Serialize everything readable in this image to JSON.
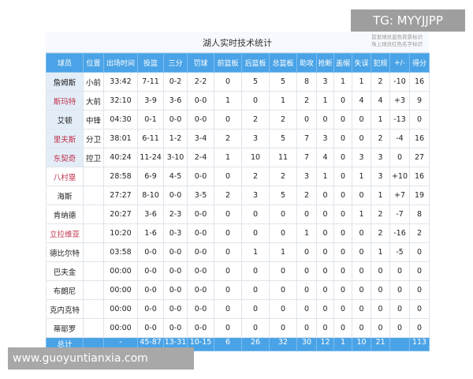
{
  "title": "湖人实时技术统计",
  "note": [
    "首发球员蓝色背景标识",
    "场上球员红色名字标识"
  ],
  "watermark_top": "TG: MYYJJPP",
  "watermark_bottom": "www.guoyuntianxia.com",
  "headers": [
    "球员",
    "位置",
    "出场时间",
    "投篮",
    "三分",
    "罚球",
    "前篮板",
    "后篮板",
    "总篮板",
    "助攻",
    "抢断",
    "盖帽",
    "失误",
    "犯规",
    "+/-",
    "得分"
  ],
  "rows": [
    {
      "starter": true,
      "on_court": false,
      "cells": [
        "詹姆斯",
        "小前",
        "33:42",
        "7-11",
        "0-2",
        "2-2",
        "0",
        "5",
        "5",
        "8",
        "3",
        "1",
        "1",
        "2",
        "-10",
        "16"
      ]
    },
    {
      "starter": true,
      "on_court": true,
      "cells": [
        "斯玛特",
        "大前",
        "32:10",
        "3-9",
        "3-6",
        "0-0",
        "1",
        "0",
        "1",
        "2",
        "1",
        "0",
        "4",
        "4",
        "+3",
        "9"
      ]
    },
    {
      "starter": true,
      "on_court": false,
      "cells": [
        "艾顿",
        "中锋",
        "04:30",
        "0-1",
        "0-0",
        "0-0",
        "0",
        "2",
        "2",
        "0",
        "0",
        "0",
        "0",
        "1",
        "-13",
        "0"
      ]
    },
    {
      "starter": true,
      "on_court": true,
      "cells": [
        "里夫斯",
        "分卫",
        "38:01",
        "6-11",
        "1-2",
        "3-4",
        "2",
        "3",
        "5",
        "7",
        "3",
        "0",
        "0",
        "2",
        "-4",
        "16"
      ]
    },
    {
      "starter": true,
      "on_court": true,
      "cells": [
        "东契奇",
        "控卫",
        "40:24",
        "11-24",
        "3-10",
        "2-4",
        "1",
        "10",
        "11",
        "7",
        "4",
        "0",
        "3",
        "3",
        "0",
        "27"
      ]
    },
    {
      "starter": false,
      "on_court": true,
      "cells": [
        "八村塁",
        "",
        "28:58",
        "6-9",
        "4-5",
        "0-0",
        "0",
        "2",
        "2",
        "3",
        "1",
        "0",
        "1",
        "3",
        "+10",
        "16"
      ]
    },
    {
      "starter": false,
      "on_court": false,
      "cells": [
        "海斯",
        "",
        "27:27",
        "8-10",
        "0-0",
        "3-5",
        "2",
        "3",
        "5",
        "2",
        "0",
        "0",
        "0",
        "1",
        "+7",
        "19"
      ]
    },
    {
      "starter": false,
      "on_court": false,
      "cells": [
        "肯纳德",
        "",
        "20:27",
        "3-6",
        "2-3",
        "0-0",
        "0",
        "0",
        "0",
        "0",
        "0",
        "0",
        "1",
        "2",
        "-7",
        "8"
      ]
    },
    {
      "starter": false,
      "on_court": true,
      "cells": [
        "立拉维亚",
        "",
        "10:20",
        "1-6",
        "0-3",
        "0-0",
        "0",
        "0",
        "0",
        "1",
        "0",
        "0",
        "0",
        "2",
        "-16",
        "2"
      ]
    },
    {
      "starter": false,
      "on_court": false,
      "cells": [
        "德比尔特",
        "",
        "03:58",
        "0-0",
        "0-0",
        "0-0",
        "0",
        "1",
        "1",
        "0",
        "0",
        "0",
        "0",
        "1",
        "-5",
        "0"
      ]
    },
    {
      "starter": false,
      "on_court": false,
      "cells": [
        "巴夫金",
        "",
        "00:00",
        "0-0",
        "0-0",
        "0-0",
        "0",
        "0",
        "0",
        "0",
        "0",
        "0",
        "0",
        "0",
        "0",
        "0"
      ]
    },
    {
      "starter": false,
      "on_court": false,
      "cells": [
        "布朗尼",
        "",
        "00:00",
        "0-0",
        "0-0",
        "0-0",
        "0",
        "0",
        "0",
        "0",
        "0",
        "0",
        "0",
        "0",
        "0",
        "0"
      ]
    },
    {
      "starter": false,
      "on_court": false,
      "cells": [
        "克内克特",
        "",
        "00:00",
        "0-0",
        "0-0",
        "0-0",
        "0",
        "0",
        "0",
        "0",
        "0",
        "0",
        "0",
        "0",
        "0",
        "0"
      ]
    },
    {
      "starter": false,
      "on_court": false,
      "cells": [
        "蒂耶罗",
        "",
        "00:00",
        "0-0",
        "0-0",
        "0-0",
        "0",
        "0",
        "0",
        "0",
        "0",
        "0",
        "0",
        "0",
        "0",
        "0"
      ]
    }
  ],
  "total": [
    "总计",
    "",
    "-",
    "45-87",
    "13-31",
    "10-15",
    "6",
    "26",
    "32",
    "30",
    "12",
    "1",
    "10",
    "21",
    "",
    "113"
  ],
  "colors": {
    "header": "#4aa3e6",
    "on_court_name": "#c0304a",
    "starter_bg": "#e3edf8"
  }
}
